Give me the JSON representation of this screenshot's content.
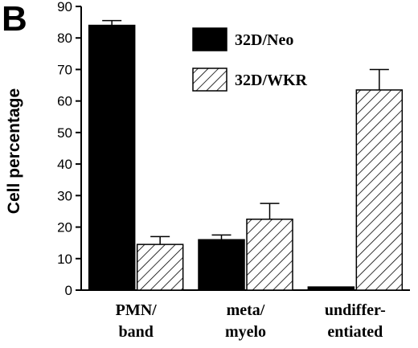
{
  "panel_label": "B",
  "chart_data": {
    "type": "bar",
    "categories": [
      [
        "PMN/",
        "band"
      ],
      [
        "meta/",
        "myelo"
      ],
      [
        "undiffer-",
        "entiated"
      ]
    ],
    "series": [
      {
        "name": "32D/Neo",
        "pattern": "solid",
        "color": "#000000",
        "values": [
          84,
          16,
          1
        ],
        "errors": [
          1.5,
          1.5,
          0
        ]
      },
      {
        "name": "32D/WKR",
        "pattern": "hatched",
        "color": "#000000",
        "values": [
          14.5,
          22.5,
          63.5
        ],
        "errors": [
          2.5,
          5,
          6.5
        ]
      }
    ],
    "ylabel": "Cell percentage",
    "xlabel": "",
    "ylim": [
      0,
      90
    ],
    "yticks": [
      "0",
      "10",
      "20",
      "30",
      "40",
      "50",
      "60",
      "70",
      "80",
      "90"
    ],
    "legend_position": "top-right",
    "grid": false
  }
}
